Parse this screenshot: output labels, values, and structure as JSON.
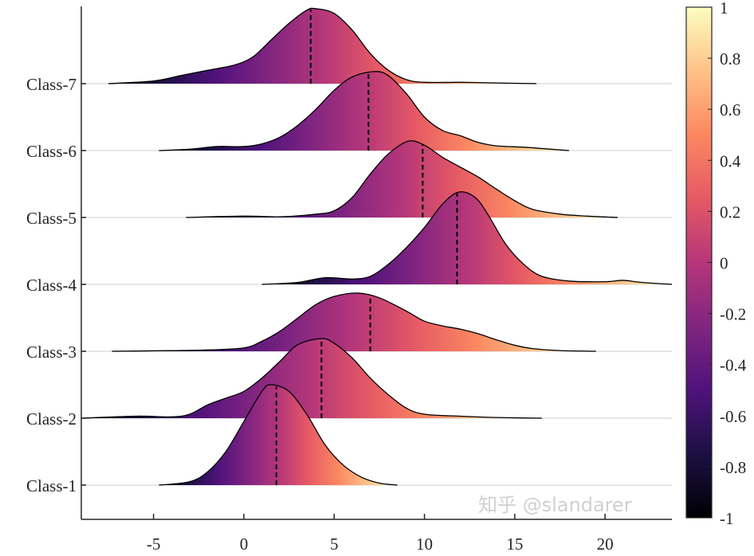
{
  "chart_data": {
    "type": "ridgeline",
    "title": "",
    "xlabel": "",
    "ylabel": "",
    "xlim": [
      -9,
      23.7
    ],
    "xticks": [
      -5,
      0,
      5,
      10,
      15,
      20
    ],
    "xtick_labels": [
      "-5",
      "0",
      "5",
      "10",
      "15",
      "20"
    ],
    "grid": false,
    "colormap": "magma",
    "colormap_stops": [
      "#000004",
      "#1c1044",
      "#4f127b",
      "#812581",
      "#b5367a",
      "#e55964",
      "#fb8761",
      "#fec287",
      "#fcfdbf"
    ],
    "outline_color": "#000000",
    "baseline_color": "#e6e6e6",
    "median_line_style": "dashed",
    "colorbar": {
      "range": [
        -1,
        1
      ],
      "ticks": [
        1,
        0.8,
        0.6,
        0.4,
        0.2,
        0,
        -0.2,
        -0.4,
        -0.6,
        -0.8,
        -1
      ],
      "tick_labels": [
        "1",
        "0.8",
        "0.6",
        "0.4",
        "0.2",
        "0",
        "-0.2",
        "-0.4",
        "-0.6",
        "-0.8",
        "-1"
      ]
    },
    "series": [
      {
        "name": "Class-1",
        "median": 1.8,
        "x": [
          -4.7,
          -3,
          -2,
          -1,
          0,
          1,
          1.5,
          2.5,
          3.5,
          4.5,
          5.5,
          6.5,
          7.5,
          8.5
        ],
        "density": [
          0,
          0.05,
          0.2,
          0.5,
          0.95,
          1.4,
          1.5,
          1.4,
          1.05,
          0.6,
          0.3,
          0.12,
          0.03,
          0
        ]
      },
      {
        "name": "Class-2",
        "median": 4.3,
        "x": [
          -9,
          -6,
          -4,
          -3,
          -2,
          -1,
          0,
          1,
          2,
          3,
          4.3,
          5,
          6,
          7,
          8,
          9,
          10,
          12,
          14,
          16.5
        ],
        "density": [
          0,
          0.03,
          0.02,
          0.06,
          0.2,
          0.3,
          0.4,
          0.6,
          0.85,
          1.1,
          1.19,
          1.12,
          0.9,
          0.6,
          0.35,
          0.15,
          0.06,
          0.03,
          0.01,
          0
        ]
      },
      {
        "name": "Class-3",
        "median": 7.0,
        "x": [
          -7.3,
          -4,
          -2,
          0,
          1,
          2,
          3,
          4,
          5,
          6.3,
          7.5,
          9,
          10,
          11,
          12,
          13,
          14,
          15,
          16,
          17.5,
          19.5
        ],
        "density": [
          0,
          0.01,
          0.02,
          0.05,
          0.15,
          0.3,
          0.5,
          0.7,
          0.82,
          0.87,
          0.8,
          0.6,
          0.45,
          0.38,
          0.33,
          0.26,
          0.17,
          0.09,
          0.04,
          0.01,
          0
        ]
      },
      {
        "name": "Class-4",
        "median": 11.8,
        "x": [
          1,
          3,
          4.5,
          6,
          7,
          8,
          9,
          10,
          11,
          11.9,
          12.8,
          13.5,
          14.5,
          15.5,
          16.5,
          18,
          20,
          21,
          22,
          23.7
        ],
        "density": [
          0,
          0.03,
          0.1,
          0.08,
          0.12,
          0.3,
          0.55,
          0.85,
          1.2,
          1.38,
          1.3,
          1.05,
          0.6,
          0.3,
          0.12,
          0.05,
          0.04,
          0.06,
          0.03,
          0
        ]
      },
      {
        "name": "Class-5",
        "median": 9.9,
        "x": [
          -3.2,
          0,
          2,
          4,
          5,
          6,
          7,
          8,
          9.1,
          10,
          11,
          12,
          13,
          14,
          15,
          16,
          17.5,
          19,
          20.7
        ],
        "density": [
          0,
          0.02,
          0.01,
          0.05,
          0.1,
          0.3,
          0.65,
          0.95,
          1.14,
          1.08,
          0.9,
          0.75,
          0.6,
          0.42,
          0.25,
          0.12,
          0.05,
          0.02,
          0
        ]
      },
      {
        "name": "Class-6",
        "median": 6.9,
        "x": [
          -4.7,
          -3,
          -1.5,
          0,
          1,
          2,
          3,
          4,
          5,
          6,
          7.2,
          8,
          9,
          10,
          11,
          12,
          13,
          14,
          15.5,
          17,
          18
        ],
        "density": [
          0,
          0.02,
          0.06,
          0.06,
          0.1,
          0.2,
          0.38,
          0.62,
          0.9,
          1.1,
          1.18,
          1.12,
          0.85,
          0.5,
          0.3,
          0.22,
          0.12,
          0.07,
          0.05,
          0.02,
          0
        ]
      },
      {
        "name": "Class-7",
        "median": 3.7,
        "x": [
          -7.5,
          -5,
          -3.5,
          -2,
          -0.5,
          0.5,
          1.5,
          2.5,
          3.5,
          4,
          5,
          6,
          7,
          8,
          9,
          10,
          12,
          14,
          16.2
        ],
        "density": [
          0,
          0.04,
          0.12,
          0.2,
          0.28,
          0.4,
          0.65,
          0.9,
          1.1,
          1.12,
          1.05,
          0.8,
          0.45,
          0.2,
          0.06,
          0.02,
          0.02,
          0.01,
          0
        ]
      }
    ]
  },
  "watermark": "知乎 @slandarer"
}
